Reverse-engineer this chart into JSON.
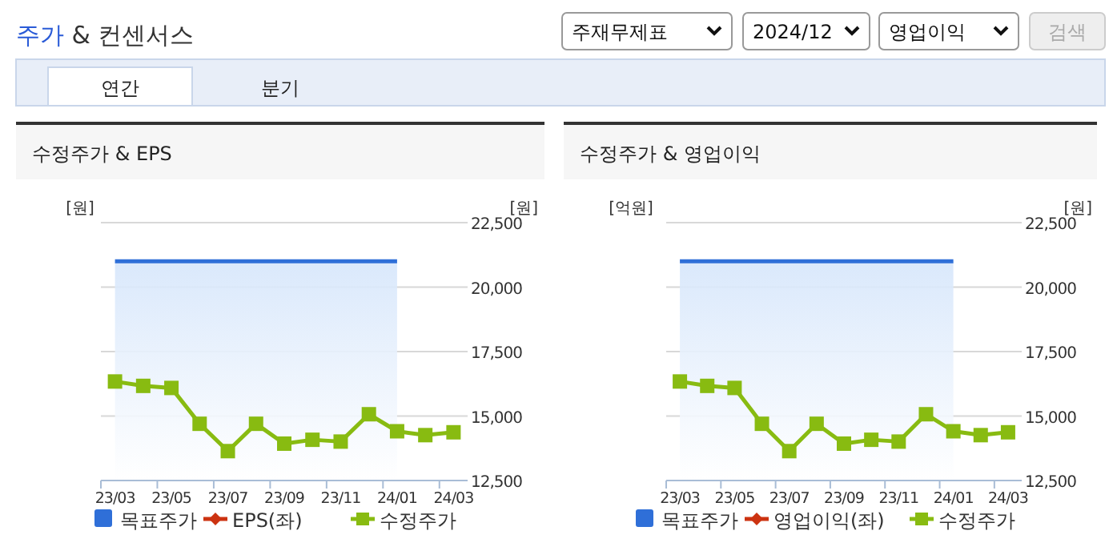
{
  "chart_data": [
    {
      "type": "other",
      "title": "주가 & 컨센서스",
      "annotations": [
        "주재무제표",
        "2024/12",
        "영업이익",
        "검색",
        "연간",
        "분기"
      ]
    },
    {
      "type": "line",
      "title": "수정주가 & EPS",
      "ylabel": "[원]",
      "y2label": "[원]",
      "categories": [
        "23/03",
        null,
        "23/05",
        null,
        "23/07",
        null,
        "23/09",
        null,
        "23/11",
        null,
        "24/01",
        null,
        "24/03"
      ],
      "y2lim": [
        12500,
        22500
      ],
      "y2ticks": [
        {
          "value": 12500,
          "label": "12,500"
        },
        {
          "value": 15000,
          "label": "15,000"
        },
        {
          "value": 17500,
          "label": "17,500"
        },
        {
          "value": 20000,
          "label": "20,000"
        },
        {
          "value": 22500,
          "label": "22,500"
        }
      ],
      "grid": "y",
      "legend": "bottom",
      "series": [
        {
          "name": "목표주가",
          "type": "area",
          "axis": "y2",
          "color": "#2f6fd8",
          "values": [
            21000,
            21000,
            21000,
            21000,
            21000,
            21000,
            21000,
            21000,
            21000,
            21000,
            21000,
            null,
            null
          ]
        },
        {
          "name": "EPS(좌)",
          "type": "line",
          "axis": "y",
          "color": "#cc3311",
          "values": [
            null,
            null,
            null,
            null,
            null,
            null,
            null,
            null,
            null,
            null,
            null,
            null,
            null
          ]
        },
        {
          "name": "수정주가",
          "type": "line",
          "axis": "y2",
          "color": "#88bb11",
          "marker": "square",
          "values": [
            16340,
            16170,
            16090,
            14700,
            13640,
            14700,
            13930,
            14080,
            14010,
            15070,
            14410,
            14260,
            14370
          ]
        }
      ]
    },
    {
      "type": "line",
      "title": "수정주가 & 영업이익",
      "ylabel": "[억원]",
      "y2label": "[원]",
      "categories": [
        "23/03",
        null,
        "23/05",
        null,
        "23/07",
        null,
        "23/09",
        null,
        "23/11",
        null,
        "24/01",
        null,
        "24/03"
      ],
      "y2lim": [
        12500,
        22500
      ],
      "y2ticks": [
        {
          "value": 12500,
          "label": "12,500"
        },
        {
          "value": 15000,
          "label": "15,000"
        },
        {
          "value": 17500,
          "label": "17,500"
        },
        {
          "value": 20000,
          "label": "20,000"
        },
        {
          "value": 22500,
          "label": "22,500"
        }
      ],
      "grid": "y",
      "legend": "bottom",
      "series": [
        {
          "name": "목표주가",
          "type": "area",
          "axis": "y2",
          "color": "#2f6fd8",
          "values": [
            21000,
            21000,
            21000,
            21000,
            21000,
            21000,
            21000,
            21000,
            21000,
            21000,
            21000,
            null,
            null
          ]
        },
        {
          "name": "영업이익(좌)",
          "type": "line",
          "axis": "y",
          "color": "#cc3311",
          "values": [
            null,
            null,
            null,
            null,
            null,
            null,
            null,
            null,
            null,
            null,
            null,
            null,
            null
          ]
        },
        {
          "name": "수정주가",
          "type": "line",
          "axis": "y2",
          "color": "#88bb11",
          "marker": "square",
          "values": [
            16340,
            16170,
            16090,
            14700,
            13640,
            14700,
            13930,
            14080,
            14010,
            15070,
            14410,
            14260,
            14370
          ]
        }
      ]
    }
  ]
}
